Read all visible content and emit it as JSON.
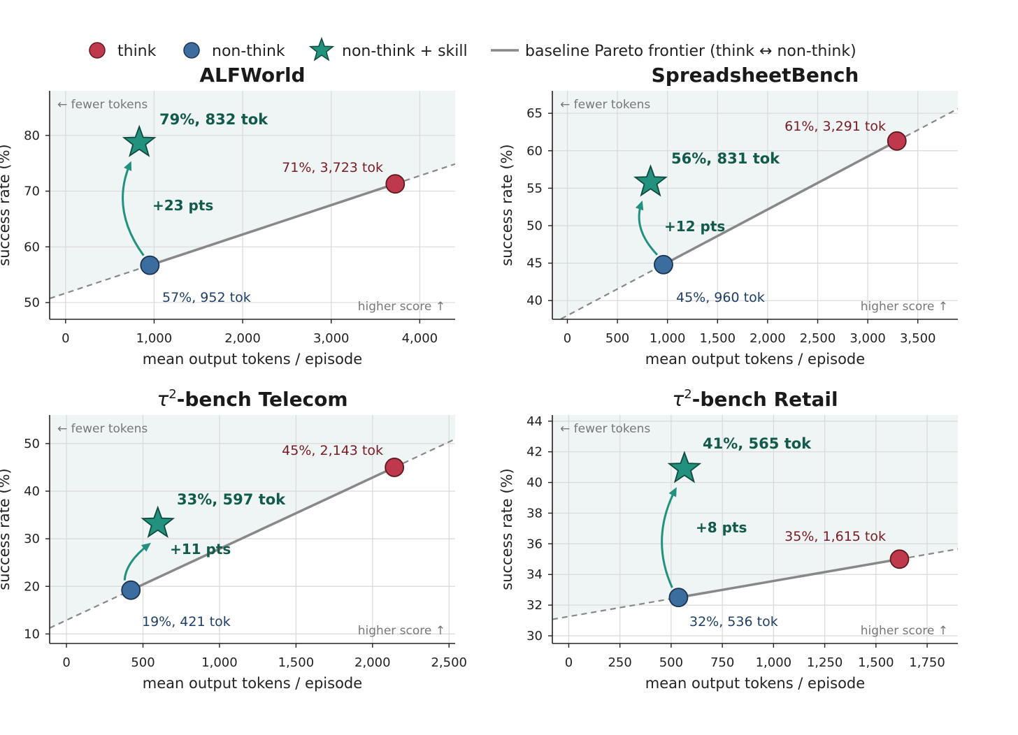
{
  "legend": {
    "think": "think",
    "non_think": "non-think",
    "skill": "non-think + skill",
    "frontier": "baseline Pareto frontier (think ↔ non-think)"
  },
  "colors": {
    "think": "#c0384b",
    "non_think": "#3b6e9e",
    "skill": "#22917e",
    "frontier": "#888888",
    "region": "#eff5f4"
  },
  "chart_data": [
    {
      "type": "scatter",
      "title": "ALFWorld",
      "xlabel": "mean output tokens / episode",
      "ylabel": "success rate (%)",
      "xlim": [
        -180,
        4400
      ],
      "ylim": [
        47,
        88
      ],
      "xticks": [
        0,
        1000,
        2000,
        3000,
        4000
      ],
      "xtick_labels": [
        "0",
        "1,000",
        "2,000",
        "3,000",
        "4,000"
      ],
      "yticks": [
        50,
        60,
        70,
        80
      ],
      "ytick_labels": [
        "50",
        "60",
        "70",
        "80"
      ],
      "grid": true,
      "points": {
        "think": {
          "x": 3723,
          "y": 71.3,
          "label": "71%, 3,723 tok"
        },
        "non_think": {
          "x": 952,
          "y": 56.7,
          "label": "57%, 952 tok"
        },
        "skill": {
          "x": 832,
          "y": 78.7,
          "label": "79%, 832 tok"
        }
      },
      "gain_label": "+23 pts",
      "note_left": "← fewer tokens",
      "note_right": "higher score ↑"
    },
    {
      "type": "scatter",
      "title": "SpreadsheetBench",
      "xlabel": "mean output tokens / episode",
      "ylabel": "success rate (%)",
      "xlim": [
        -150,
        3900
      ],
      "ylim": [
        37.5,
        68
      ],
      "xticks": [
        0,
        500,
        1000,
        1500,
        2000,
        2500,
        3000,
        3500
      ],
      "xtick_labels": [
        "0",
        "500",
        "1,000",
        "1,500",
        "2,000",
        "2,500",
        "3,000",
        "3,500"
      ],
      "yticks": [
        40,
        45,
        50,
        55,
        60,
        65
      ],
      "ytick_labels": [
        "40",
        "45",
        "50",
        "55",
        "60",
        "65"
      ],
      "grid": true,
      "points": {
        "think": {
          "x": 3291,
          "y": 61.3,
          "label": "61%, 3,291 tok"
        },
        "non_think": {
          "x": 960,
          "y": 44.8,
          "label": "45%, 960 tok"
        },
        "skill": {
          "x": 831,
          "y": 55.8,
          "label": "56%, 831 tok"
        }
      },
      "gain_label": "+12 pts",
      "note_left": "← fewer tokens",
      "note_right": "higher score ↑"
    },
    {
      "type": "scatter",
      "title": "τ²-bench Telecom",
      "title_prefix": "τ",
      "title_sup": "2",
      "title_suffix": "-bench Telecom",
      "xlabel": "mean output tokens / episode",
      "ylabel": "success rate (%)",
      "xlim": [
        -110,
        2540
      ],
      "ylim": [
        8,
        56
      ],
      "xticks": [
        0,
        500,
        1000,
        1500,
        2000,
        2500
      ],
      "xtick_labels": [
        "0",
        "500",
        "1,000",
        "1,500",
        "2,000",
        "2,500"
      ],
      "yticks": [
        10,
        20,
        30,
        40,
        50
      ],
      "ytick_labels": [
        "10",
        "20",
        "30",
        "40",
        "50"
      ],
      "grid": true,
      "points": {
        "think": {
          "x": 2143,
          "y": 45.0,
          "label": "45%, 2,143 tok"
        },
        "non_think": {
          "x": 421,
          "y": 19.2,
          "label": "19%, 421 tok"
        },
        "skill": {
          "x": 597,
          "y": 33.2,
          "label": "33%, 597 tok"
        }
      },
      "gain_label": "+11 pts",
      "note_left": "← fewer tokens",
      "note_right": "higher score ↑"
    },
    {
      "type": "scatter",
      "title": "τ²-bench Retail",
      "title_prefix": "τ",
      "title_sup": "2",
      "title_suffix": "-bench Retail",
      "xlabel": "mean output tokens / episode",
      "ylabel": "success rate (%)",
      "xlim": [
        -80,
        1900
      ],
      "ylim": [
        29.5,
        44.4
      ],
      "xticks": [
        0,
        250,
        500,
        750,
        1000,
        1250,
        1500,
        1750
      ],
      "xtick_labels": [
        "0",
        "250",
        "500",
        "750",
        "1,000",
        "1,250",
        "1,500",
        "1,750"
      ],
      "yticks": [
        30,
        32,
        34,
        36,
        38,
        40,
        42,
        44
      ],
      "ytick_labels": [
        "30",
        "32",
        "34",
        "36",
        "38",
        "40",
        "42",
        "44"
      ],
      "grid": true,
      "points": {
        "think": {
          "x": 1615,
          "y": 35.0,
          "label": "35%, 1,615 tok"
        },
        "non_think": {
          "x": 536,
          "y": 32.5,
          "label": "32%, 536 tok"
        },
        "skill": {
          "x": 565,
          "y": 40.9,
          "label": "41%, 565 tok"
        }
      },
      "gain_label": "+8 pts",
      "note_left": "← fewer tokens",
      "note_right": "higher score ↑"
    }
  ]
}
